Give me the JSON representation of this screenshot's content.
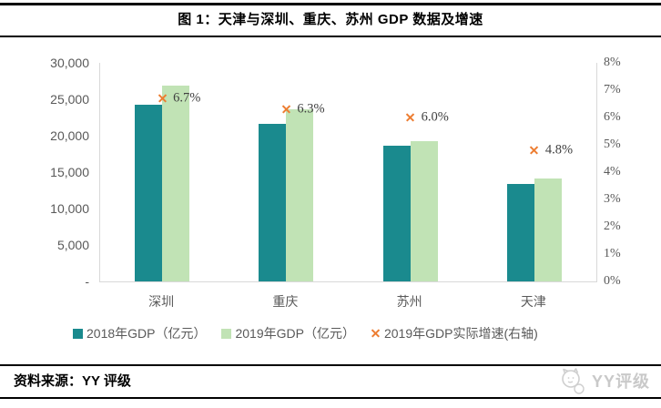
{
  "header": {
    "title": "图 1：天津与深圳、重庆、苏州 GDP 数据及增速"
  },
  "footer": {
    "source": "资料来源：YY 评级",
    "watermark": "YY评级",
    "watermark_icon": "cat-logo-icon"
  },
  "colors": {
    "bar_2018": "#1a8a8e",
    "bar_2019": "#c1e3b5",
    "growth_marker": "#ed7d31",
    "axis_line": "#d9d9d9",
    "tick_text": "#595959"
  },
  "chart_data": {
    "type": "bar",
    "subtype": "grouped-bars-with-scatter-markers",
    "categories": [
      "深圳",
      "重庆",
      "苏州",
      "天津"
    ],
    "series": [
      {
        "name": "2018年GDP（亿元）",
        "type": "bar",
        "axis": "left",
        "color": "#1a8a8e",
        "values": [
          24222,
          21589,
          18597,
          13363
        ]
      },
      {
        "name": "2019年GDP（亿元）",
        "type": "bar",
        "axis": "left",
        "color": "#c1e3b5",
        "values": [
          26927,
          23606,
          19236,
          14104
        ]
      },
      {
        "name": "2019年GDP实际增速(右轴)",
        "type": "scatter",
        "marker": "x",
        "axis": "right",
        "color": "#ed7d31",
        "values": [
          6.7,
          6.3,
          6.0,
          4.8
        ],
        "labels": [
          "6.7%",
          "6.3%",
          "6.0%",
          "4.8%"
        ]
      }
    ],
    "left_axis": {
      "min": 0,
      "max": 30000,
      "ticks": [
        "30,000",
        "25,000",
        "20,000",
        "15,000",
        "10,000",
        "5,000",
        "-"
      ]
    },
    "right_axis": {
      "min": 0,
      "max": 8,
      "ticks": [
        "8%",
        "7%",
        "6%",
        "5%",
        "4%",
        "3%",
        "2%",
        "1%",
        "0%"
      ]
    },
    "grid": false,
    "legend_position": "bottom"
  }
}
